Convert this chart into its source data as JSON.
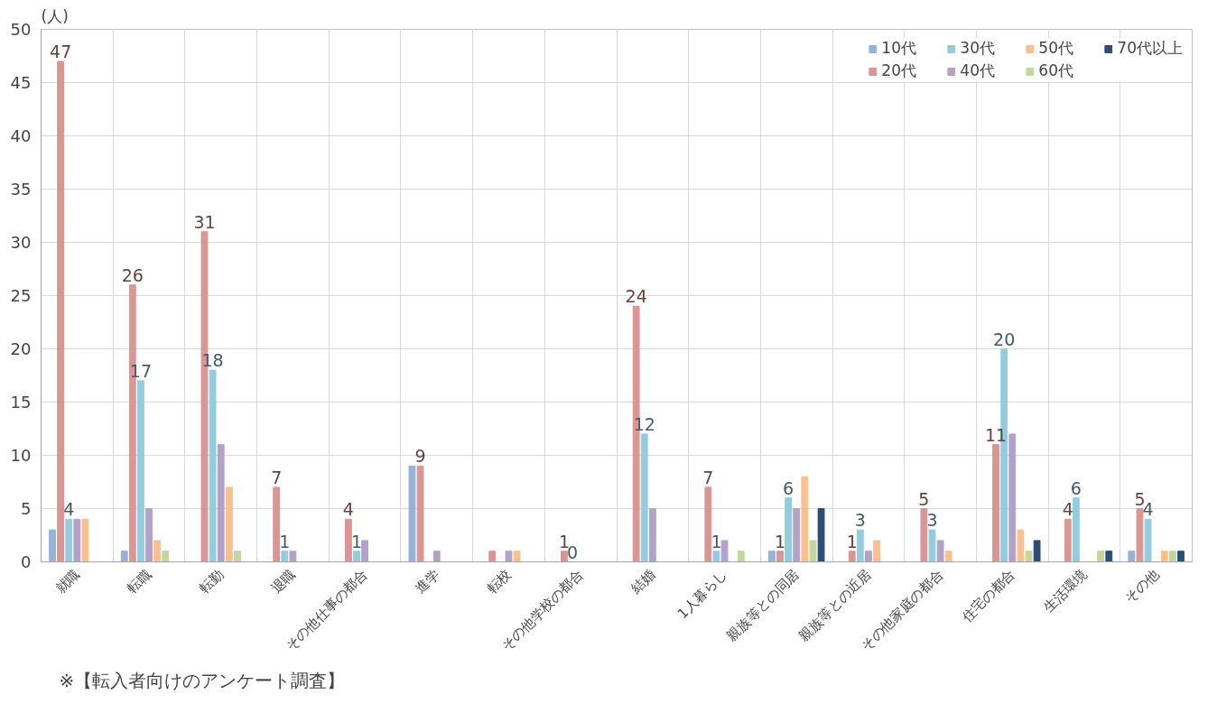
{
  "chart_data": {
    "type": "bar",
    "ylabel": "(人)",
    "categories": [
      "就職",
      "転職",
      "転勤",
      "退職",
      "その他仕事の都合",
      "進学",
      "転校",
      "その他学校の都合",
      "結婚",
      "1人暮らし",
      "親族等との同居",
      "親族等との近居",
      "その他家庭の都合",
      "住宅の都合",
      "生活環境",
      "その他"
    ],
    "series": [
      {
        "name": "10代",
        "color": "#95b3d7",
        "values": [
          3,
          1,
          0,
          0,
          0,
          9,
          0,
          0,
          0,
          0,
          1,
          0,
          0,
          0,
          0,
          1
        ]
      },
      {
        "name": "20代",
        "color": "#d99694",
        "values": [
          47,
          26,
          31,
          7,
          4,
          9,
          1,
          1,
          24,
          7,
          1,
          1,
          5,
          11,
          4,
          5
        ],
        "value_labels": [
          "47",
          "26",
          "31",
          "7",
          "4",
          "9",
          null,
          "1",
          "24",
          "7",
          "1",
          "1",
          "5",
          "11",
          "4",
          "5"
        ]
      },
      {
        "name": "30代",
        "color": "#93cddd",
        "values": [
          4,
          17,
          18,
          1,
          1,
          0,
          0,
          0,
          12,
          1,
          6,
          3,
          3,
          20,
          6,
          4
        ],
        "value_labels": [
          "4",
          "17",
          "18",
          "1",
          "1",
          null,
          null,
          "0",
          "12",
          "1",
          "6",
          "3",
          "3",
          "20",
          "6",
          "4"
        ]
      },
      {
        "name": "40代",
        "color": "#b3a2c7",
        "values": [
          4,
          5,
          11,
          1,
          2,
          1,
          1,
          0,
          5,
          2,
          5,
          1,
          2,
          12,
          0,
          0
        ]
      },
      {
        "name": "50代",
        "color": "#fac090",
        "values": [
          4,
          2,
          7,
          0,
          0,
          0,
          1,
          0,
          0,
          0,
          8,
          2,
          1,
          3,
          0,
          1
        ]
      },
      {
        "name": "60代",
        "color": "#c3d69b",
        "values": [
          0,
          1,
          1,
          0,
          0,
          0,
          0,
          0,
          0,
          1,
          2,
          0,
          0,
          1,
          1,
          1
        ]
      },
      {
        "name": "70代以上",
        "color": "#2c4d75",
        "values": [
          0,
          0,
          0,
          0,
          0,
          0,
          0,
          0,
          0,
          0,
          5,
          0,
          0,
          2,
          1,
          1
        ]
      }
    ],
    "ylim": [
      0,
      50
    ],
    "yticks": [
      0,
      5,
      10,
      15,
      20,
      25,
      30,
      35,
      40,
      45,
      50
    ],
    "grid": true,
    "legend": "top right",
    "annotations": [
      "※【転入者向けのアンケート調査】"
    ]
  }
}
